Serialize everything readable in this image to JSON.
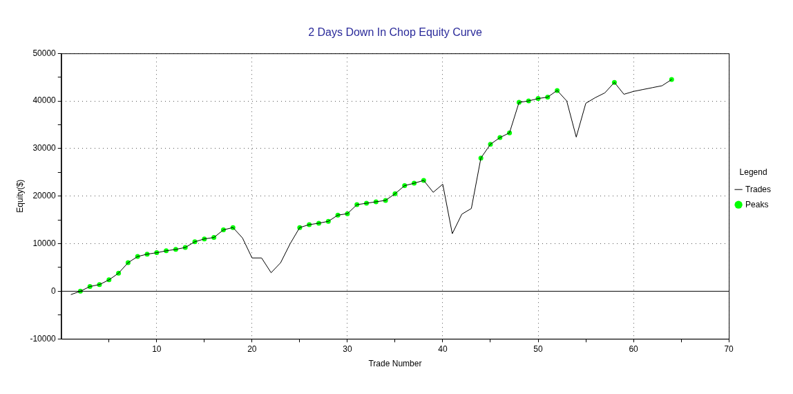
{
  "chart_data": {
    "type": "line",
    "title": "2 Days Down In Chop Equity Curve",
    "xlabel": "Trade Number",
    "ylabel": "Equity($)",
    "legend_title": "Legend",
    "legend": "right",
    "grid": true,
    "xlim": [
      0,
      70
    ],
    "xticks": [
      {
        "value": 5,
        "label": null
      },
      10,
      {
        "value": 15,
        "label": null
      },
      20,
      {
        "value": 25,
        "label": null
      },
      30,
      {
        "value": 35,
        "label": null
      },
      40,
      {
        "value": 45,
        "label": null
      },
      50,
      {
        "value": 55,
        "label": null
      },
      60,
      {
        "value": 65,
        "label": null
      },
      70
    ],
    "ylim": [
      -10000,
      50000
    ],
    "yticks": [
      -10000,
      {
        "value": -5000,
        "label": null
      },
      0,
      {
        "value": 5000,
        "label": null
      },
      10000,
      {
        "value": 15000,
        "label": null
      },
      20000,
      {
        "value": 25000,
        "label": null
      },
      30000,
      {
        "value": 35000,
        "label": null
      },
      40000,
      {
        "value": 45000,
        "label": null
      },
      50000
    ],
    "ref_lines": [
      {
        "axis": "y",
        "value": 0,
        "color": "#000000",
        "line_style": "solid"
      }
    ],
    "series": [
      {
        "name": "Trades",
        "color": "#000000",
        "marker": "none",
        "line_style": "solid",
        "x": [
          1,
          2,
          3,
          4,
          5,
          6,
          7,
          8,
          9,
          10,
          11,
          12,
          13,
          14,
          15,
          16,
          17,
          18,
          19,
          20,
          21,
          22,
          23,
          24,
          25,
          26,
          27,
          28,
          29,
          30,
          31,
          32,
          33,
          34,
          35,
          36,
          37,
          38,
          39,
          40,
          41,
          42,
          43,
          44,
          45,
          46,
          47,
          48,
          49,
          50,
          51,
          52,
          53,
          54,
          55,
          56,
          57,
          58,
          59,
          60,
          61,
          62,
          63,
          64
        ],
        "values": [
          -700,
          0,
          1000,
          1400,
          2400,
          3800,
          6000,
          7300,
          7800,
          8100,
          8500,
          8800,
          9200,
          10400,
          11000,
          11300,
          12900,
          13400,
          11200,
          7000,
          7000,
          3900,
          6000,
          10000,
          13400,
          14000,
          14300,
          14700,
          16000,
          16300,
          18200,
          18500,
          18800,
          19100,
          20500,
          22200,
          22700,
          23300,
          20800,
          22500,
          12100,
          16200,
          17400,
          28000,
          30900,
          32300,
          33300,
          39700,
          40000,
          40500,
          40800,
          42200,
          40000,
          32400,
          39500,
          40700,
          41700,
          43900,
          41400,
          42000,
          42400,
          42800,
          43200,
          44500
        ]
      },
      {
        "name": "Peaks",
        "type": "scatter",
        "color": "#00ff00",
        "marker": "circle",
        "x": [
          2,
          3,
          4,
          5,
          6,
          7,
          8,
          9,
          10,
          11,
          12,
          13,
          14,
          15,
          16,
          17,
          18,
          25,
          26,
          27,
          28,
          29,
          30,
          31,
          32,
          33,
          34,
          35,
          36,
          37,
          38,
          44,
          45,
          46,
          47,
          48,
          49,
          50,
          51,
          52,
          58,
          64
        ],
        "values": [
          0,
          1000,
          1400,
          2400,
          3800,
          6000,
          7300,
          7800,
          8100,
          8500,
          8800,
          9200,
          10400,
          11000,
          11300,
          12900,
          13400,
          13400,
          14000,
          14300,
          14700,
          16000,
          16300,
          18200,
          18500,
          18800,
          19100,
          20500,
          22200,
          22700,
          23300,
          28000,
          30900,
          32300,
          33300,
          39700,
          40000,
          40500,
          40800,
          42200,
          43900,
          44500
        ]
      }
    ]
  }
}
